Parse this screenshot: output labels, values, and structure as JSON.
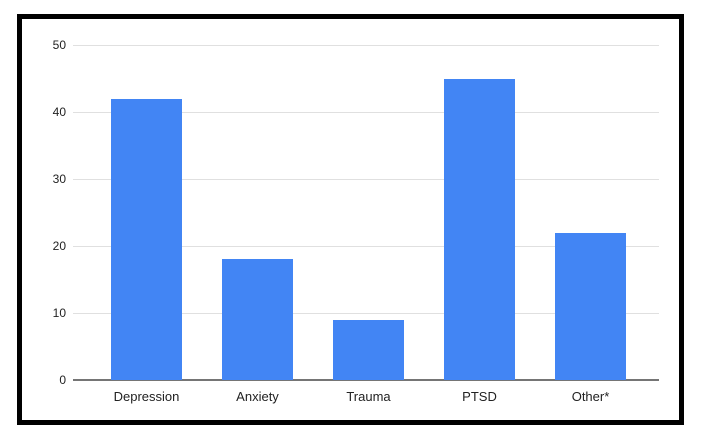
{
  "chart_data": {
    "type": "bar",
    "categories": [
      "Depression",
      "Anxiety",
      "Trauma",
      "PTSD",
      "Other*"
    ],
    "values": [
      42,
      18,
      9,
      45,
      22
    ],
    "series_color": "#4285f4",
    "yticks": [
      0,
      10,
      20,
      30,
      40,
      50
    ],
    "ylim": [
      0,
      50
    ],
    "grid": true,
    "legend_position": "none",
    "colors": {
      "bar": "#4285f4",
      "gridline": "#e0e0e0",
      "axis_line": "#757575",
      "labels": "#222222",
      "frame_border": "#000000",
      "background": "#ffffff"
    }
  }
}
